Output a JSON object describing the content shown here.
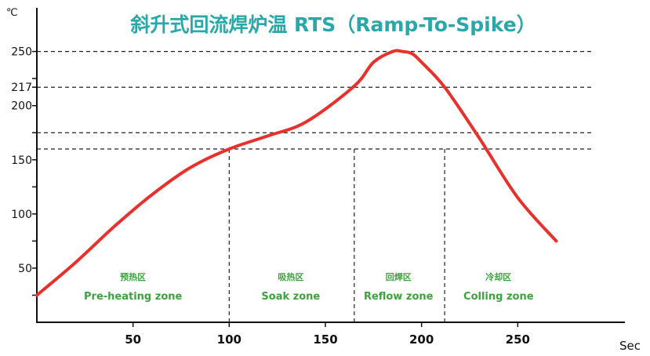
{
  "chart_data": {
    "type": "line",
    "title": "斜升式回流焊炉温 RTS（Ramp-To-Spike）",
    "y_unit": "℃",
    "x_unit": "Sec",
    "x_ticks": [
      50,
      100,
      150,
      200,
      250
    ],
    "y_tick_labels": [
      {
        "value": 250,
        "label": "250"
      },
      {
        "value": 217,
        "label": "217"
      },
      {
        "value": 200,
        "label": "200"
      },
      {
        "value": 150,
        "label": "150"
      },
      {
        "value": 100,
        "label": "100"
      },
      {
        "value": 50,
        "label": "50"
      }
    ],
    "y_minor_ticks": [
      25,
      75,
      125,
      175,
      225
    ],
    "xlim": [
      0,
      300
    ],
    "ylim": [
      0,
      270
    ],
    "reference_lines_y": [
      250,
      217,
      175,
      160
    ],
    "zone_boundaries_x": [
      100,
      165,
      212
    ],
    "curve_color": "#e8312c",
    "series": [
      {
        "x": [
          0,
          20,
          40,
          60,
          80,
          100,
          120,
          140,
          165,
          175,
          185,
          190,
          195,
          200,
          212,
          230,
          250,
          270
        ],
        "y": [
          25,
          55,
          88,
          118,
          143,
          160,
          172,
          185,
          218,
          240,
          250,
          250,
          248,
          240,
          217,
          170,
          115,
          75
        ]
      }
    ],
    "zones": [
      {
        "cn": "预热区",
        "en": "Pre-heating zone",
        "x_center": 50
      },
      {
        "cn": "吸热区",
        "en": "Soak zone",
        "x_center": 132
      },
      {
        "cn": "回焊区",
        "en": "Reflow zone",
        "x_center": 188
      },
      {
        "cn": "冷却区",
        "en": "Colling zone",
        "x_center": 240
      }
    ],
    "zone_text_color": "#3ca33c",
    "title_color": "#2aa7a8"
  }
}
